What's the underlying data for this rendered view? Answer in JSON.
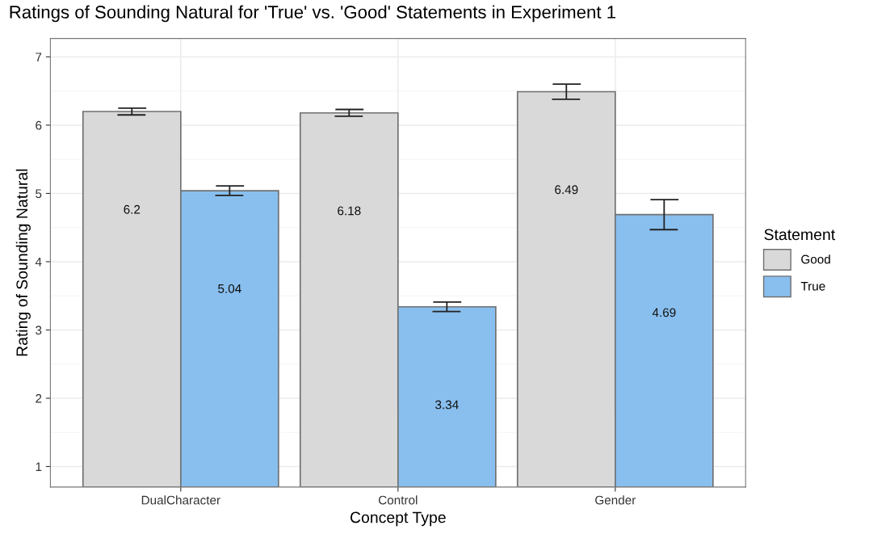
{
  "chart_data": {
    "type": "bar",
    "title": "Ratings of Sounding Natural for 'True' vs. 'Good' Statements in Experiment 1",
    "xlabel": "Concept Type",
    "ylabel": "Rating of Sounding Natural",
    "legend_title": "Statement",
    "categories": [
      "DualCharacter",
      "Control",
      "Gender"
    ],
    "series": [
      {
        "name": "Good",
        "color": "#d9d9d9",
        "values": [
          6.2,
          6.18,
          6.49
        ],
        "errors": [
          0.05,
          0.05,
          0.11
        ]
      },
      {
        "name": "True",
        "color": "#89bfee",
        "values": [
          5.04,
          3.34,
          4.69
        ],
        "errors": [
          0.07,
          0.07,
          0.22
        ]
      }
    ],
    "ylim": [
      0.7,
      7.27
    ],
    "yticks": [
      1,
      2,
      3,
      4,
      5,
      6,
      7
    ],
    "grid": true,
    "legend": "right",
    "data_labels": true
  }
}
